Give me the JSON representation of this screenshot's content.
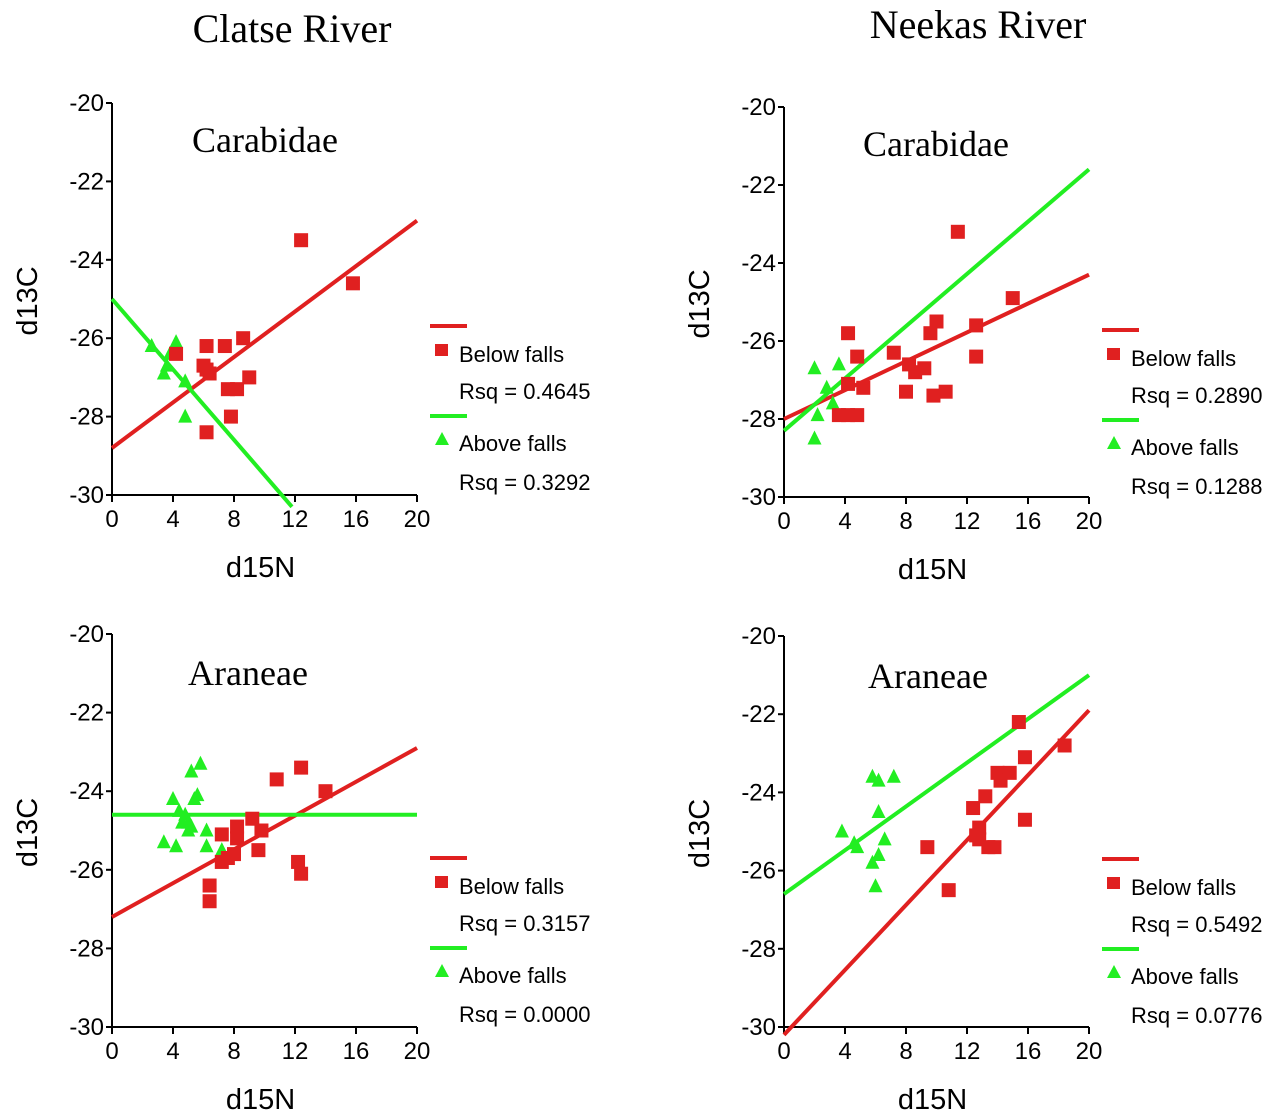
{
  "columns": [
    "Clatse River",
    "Neekas River"
  ],
  "colors": {
    "below": "#e02020",
    "above": "#22ee22"
  },
  "legend": {
    "below_label": "Below falls",
    "above_label": "Above falls"
  },
  "chart_data": [
    {
      "type": "scatter",
      "column": "Clatse River",
      "title": "Carabidae",
      "xlabel": "d15N",
      "ylabel": "d13C",
      "xlim": [
        0,
        20
      ],
      "ylim": [
        -30,
        -20
      ],
      "xticks": [
        "0",
        "4",
        "8",
        "12",
        "16",
        "20"
      ],
      "yticks": [
        "-30",
        "-28",
        "-26",
        "-24",
        "-22",
        "-20"
      ],
      "series": [
        {
          "name": "Below falls",
          "marker": "square",
          "rsq_label": "Rsq = 0.4645",
          "line": [
            [
              0,
              -28.8
            ],
            [
              20,
              -23.0
            ]
          ],
          "points": [
            [
              12.4,
              -23.5
            ],
            [
              15.8,
              -24.6
            ],
            [
              4.2,
              -26.4
            ],
            [
              6.2,
              -26.2
            ],
            [
              7.4,
              -26.2
            ],
            [
              8.6,
              -26.0
            ],
            [
              6.0,
              -26.7
            ],
            [
              6.4,
              -26.9
            ],
            [
              6.2,
              -26.8
            ],
            [
              7.6,
              -27.3
            ],
            [
              8.2,
              -27.3
            ],
            [
              9.0,
              -27.0
            ],
            [
              7.8,
              -28.0
            ],
            [
              6.2,
              -28.4
            ]
          ]
        },
        {
          "name": "Above falls",
          "marker": "triangle",
          "rsq_label": "Rsq = 0.3292",
          "line": [
            [
              0,
              -25.0
            ],
            [
              11.8,
              -30.3
            ]
          ],
          "points": [
            [
              2.6,
              -26.2
            ],
            [
              4.2,
              -26.1
            ],
            [
              3.8,
              -26.4
            ],
            [
              3.6,
              -26.7
            ],
            [
              3.4,
              -26.9
            ],
            [
              4.8,
              -27.1
            ],
            [
              4.8,
              -28.0
            ]
          ]
        }
      ]
    },
    {
      "type": "scatter",
      "column": "Neekas River",
      "title": "Carabidae",
      "xlabel": "d15N",
      "ylabel": "d13C",
      "xlim": [
        0,
        20
      ],
      "ylim": [
        -30,
        -20
      ],
      "xticks": [
        "0",
        "4",
        "8",
        "12",
        "16",
        "20"
      ],
      "yticks": [
        "-30",
        "-28",
        "-26",
        "-24",
        "-22",
        "-20"
      ],
      "series": [
        {
          "name": "Below falls",
          "marker": "square",
          "rsq_label": "Rsq = 0.2890",
          "line": [
            [
              0,
              -28.0
            ],
            [
              20,
              -24.3
            ]
          ],
          "points": [
            [
              11.4,
              -23.2
            ],
            [
              15.0,
              -24.9
            ],
            [
              12.6,
              -25.6
            ],
            [
              10.0,
              -25.5
            ],
            [
              9.6,
              -25.8
            ],
            [
              4.2,
              -25.8
            ],
            [
              12.6,
              -26.4
            ],
            [
              7.2,
              -26.3
            ],
            [
              4.8,
              -26.4
            ],
            [
              8.2,
              -26.6
            ],
            [
              8.6,
              -26.8
            ],
            [
              9.2,
              -26.7
            ],
            [
              5.2,
              -27.2
            ],
            [
              4.2,
              -27.1
            ],
            [
              8.0,
              -27.3
            ],
            [
              9.8,
              -27.4
            ],
            [
              10.6,
              -27.3
            ],
            [
              3.6,
              -27.9
            ],
            [
              4.2,
              -27.9
            ],
            [
              4.8,
              -27.9
            ]
          ]
        },
        {
          "name": "Above falls",
          "marker": "triangle",
          "rsq_label": "Rsq = 0.1288",
          "line": [
            [
              0,
              -28.3
            ],
            [
              20,
              -21.6
            ]
          ],
          "points": [
            [
              2.0,
              -26.7
            ],
            [
              3.6,
              -26.6
            ],
            [
              2.8,
              -27.2
            ],
            [
              3.2,
              -27.6
            ],
            [
              2.2,
              -27.9
            ],
            [
              2.0,
              -28.5
            ]
          ]
        }
      ]
    },
    {
      "type": "scatter",
      "column": "Clatse River",
      "title": "Araneae",
      "xlabel": "d15N",
      "ylabel": "d13C",
      "xlim": [
        0,
        20
      ],
      "ylim": [
        -30,
        -20
      ],
      "xticks": [
        "0",
        "4",
        "8",
        "12",
        "16",
        "20"
      ],
      "yticks": [
        "-30",
        "-28",
        "-26",
        "-24",
        "-22",
        "-20"
      ],
      "series": [
        {
          "name": "Below falls",
          "marker": "square",
          "rsq_label": "Rsq = 0.3157",
          "line": [
            [
              0,
              -27.2
            ],
            [
              20,
              -22.9
            ]
          ],
          "points": [
            [
              12.4,
              -23.4
            ],
            [
              10.8,
              -23.7
            ],
            [
              14.0,
              -24.0
            ],
            [
              9.2,
              -24.7
            ],
            [
              9.8,
              -25.0
            ],
            [
              8.2,
              -24.9
            ],
            [
              7.2,
              -25.1
            ],
            [
              8.2,
              -25.2
            ],
            [
              9.6,
              -25.5
            ],
            [
              8.0,
              -25.6
            ],
            [
              7.6,
              -25.7
            ],
            [
              7.2,
              -25.8
            ],
            [
              12.2,
              -25.8
            ],
            [
              12.4,
              -26.1
            ],
            [
              6.4,
              -26.4
            ],
            [
              6.4,
              -26.8
            ]
          ]
        },
        {
          "name": "Above falls",
          "marker": "triangle",
          "rsq_label": "Rsq = 0.0000",
          "line": [
            [
              0,
              -24.6
            ],
            [
              20,
              -24.6
            ]
          ],
          "points": [
            [
              5.8,
              -23.3
            ],
            [
              5.2,
              -23.5
            ],
            [
              4.0,
              -24.2
            ],
            [
              5.6,
              -24.1
            ],
            [
              5.4,
              -24.2
            ],
            [
              4.4,
              -24.5
            ],
            [
              4.8,
              -24.6
            ],
            [
              5.0,
              -24.8
            ],
            [
              4.6,
              -24.8
            ],
            [
              5.2,
              -24.9
            ],
            [
              5.0,
              -25.0
            ],
            [
              6.2,
              -25.0
            ],
            [
              3.4,
              -25.3
            ],
            [
              4.2,
              -25.4
            ],
            [
              6.2,
              -25.4
            ],
            [
              7.2,
              -25.5
            ]
          ]
        }
      ]
    },
    {
      "type": "scatter",
      "column": "Neekas River",
      "title": "Araneae",
      "xlabel": "d15N",
      "ylabel": "d13C",
      "xlim": [
        0,
        20
      ],
      "ylim": [
        -30,
        -20
      ],
      "xticks": [
        "0",
        "4",
        "8",
        "12",
        "16",
        "20"
      ],
      "yticks": [
        "-30",
        "-28",
        "-26",
        "-24",
        "-22",
        "-20"
      ],
      "series": [
        {
          "name": "Below falls",
          "marker": "square",
          "rsq_label": "Rsq = 0.5492",
          "line": [
            [
              0,
              -30.2
            ],
            [
              20,
              -21.9
            ]
          ],
          "points": [
            [
              15.4,
              -22.2
            ],
            [
              18.4,
              -22.8
            ],
            [
              15.8,
              -23.1
            ],
            [
              14.0,
              -23.5
            ],
            [
              14.8,
              -23.5
            ],
            [
              14.2,
              -23.7
            ],
            [
              13.2,
              -24.1
            ],
            [
              12.4,
              -24.4
            ],
            [
              15.8,
              -24.7
            ],
            [
              12.8,
              -24.9
            ],
            [
              12.6,
              -25.1
            ],
            [
              12.8,
              -25.2
            ],
            [
              13.4,
              -25.4
            ],
            [
              13.8,
              -25.4
            ],
            [
              9.4,
              -25.4
            ],
            [
              10.8,
              -26.5
            ]
          ]
        },
        {
          "name": "Above falls",
          "marker": "triangle",
          "rsq_label": "Rsq = 0.0776",
          "line": [
            [
              0,
              -26.6
            ],
            [
              20,
              -21.0
            ]
          ],
          "points": [
            [
              5.8,
              -23.6
            ],
            [
              7.2,
              -23.6
            ],
            [
              6.2,
              -23.7
            ],
            [
              6.2,
              -24.5
            ],
            [
              3.8,
              -25.0
            ],
            [
              6.6,
              -25.2
            ],
            [
              4.6,
              -25.3
            ],
            [
              4.8,
              -25.4
            ],
            [
              6.2,
              -25.6
            ],
            [
              5.8,
              -25.8
            ],
            [
              6.0,
              -26.4
            ]
          ]
        }
      ]
    }
  ]
}
